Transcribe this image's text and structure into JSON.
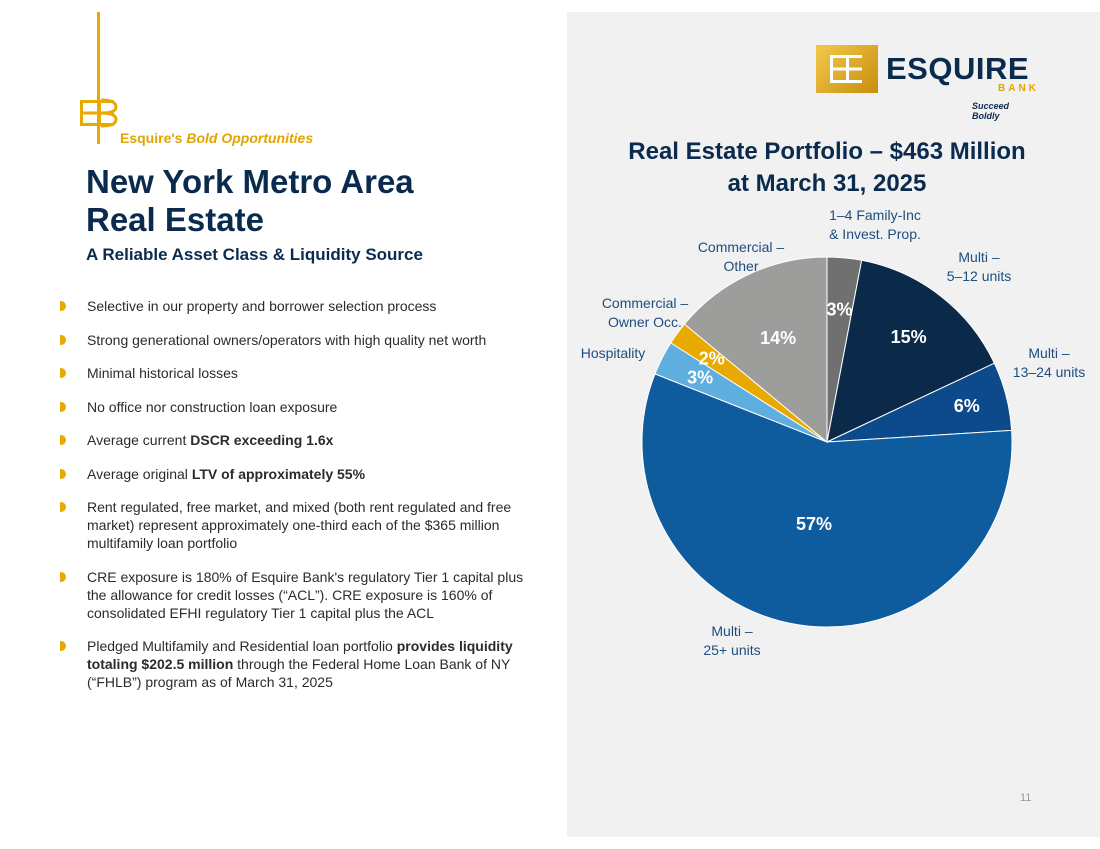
{
  "header": {
    "tagline_prefix": "Esquire's",
    "tagline_emphasis": "Bold Opportunities",
    "title_line1": "New York Metro Area",
    "title_line2": "Real Estate",
    "subtitle": "A Reliable Asset Class & Liquidity Source"
  },
  "bullets": [
    {
      "pre": "Selective in our property and borrower selection process",
      "bold": "",
      "post": ""
    },
    {
      "pre": "Strong generational owners/operators with high quality net worth",
      "bold": "",
      "post": ""
    },
    {
      "pre": "Minimal historical losses",
      "bold": "",
      "post": ""
    },
    {
      "pre": "No office nor construction loan exposure",
      "bold": "",
      "post": ""
    },
    {
      "pre": "Average current ",
      "bold": "DSCR exceeding 1.6x",
      "post": ""
    },
    {
      "pre": "Average original ",
      "bold": "LTV of approximately 55%",
      "post": ""
    },
    {
      "pre": "Rent regulated, free market, and mixed (both rent regulated and free market) represent approximately one-third each of the $365 million multifamily loan portfolio",
      "bold": "",
      "post": ""
    },
    {
      "pre": "CRE exposure is 180% of Esquire Bank's regulatory Tier 1 capital plus the allowance for credit losses (“ACL”). CRE exposure is 160% of consolidated EFHI regulatory Tier 1 capital plus the ACL",
      "bold": "",
      "post": ""
    },
    {
      "pre": "Pledged Multifamily and Residential loan portfolio ",
      "bold": "provides liquidity totaling $202.5 million",
      "post": " through the Federal Home Loan Bank of NY (“FHLB”) program as of March 31, 2025"
    }
  ],
  "logo": {
    "name": "ESQUIRE",
    "bank": "BANK",
    "slogan": "Succeed Boldly"
  },
  "page_number": "11",
  "chart_data": {
    "type": "pie",
    "title_line1": "Real Estate Portfolio – $463 Million",
    "title_line2": "at March 31, 2025",
    "slices": [
      {
        "label": [
          "1–4 Family-Inc",
          "& Invest. Prop."
        ],
        "value": 3,
        "display": "3%",
        "color": "#707070"
      },
      {
        "label": [
          "Multi –",
          "5–12 units"
        ],
        "value": 15,
        "display": "15%",
        "color": "#0b2a4a"
      },
      {
        "label": [
          "Multi –",
          "13–24 units"
        ],
        "value": 6,
        "display": "6%",
        "color": "#0c4a8c"
      },
      {
        "label": [
          "Multi –",
          "25+ units"
        ],
        "value": 57,
        "display": "57%",
        "color": "#0e5c9e"
      },
      {
        "label": [
          "Hospitality"
        ],
        "value": 3,
        "display": "3%",
        "color": "#5eaee0"
      },
      {
        "label": [
          "Commercial –",
          "Owner Occ."
        ],
        "value": 2,
        "display": "2%",
        "color": "#e8a900"
      },
      {
        "label": [
          "Commercial –",
          "Other"
        ],
        "value": 14,
        "display": "14%",
        "color": "#9d9d9b"
      }
    ]
  }
}
